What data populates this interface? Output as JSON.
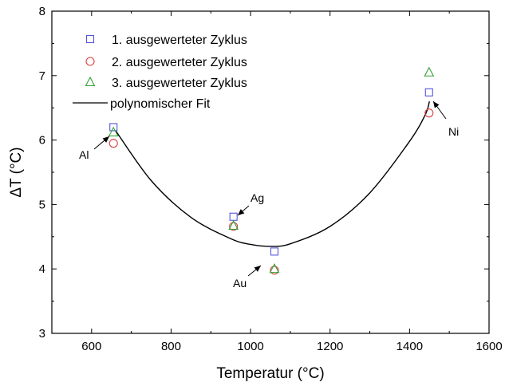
{
  "chart_data": {
    "type": "scatter",
    "xlabel": "Temperatur (°C)",
    "ylabel": "ΔT (°C)",
    "xlim": [
      500,
      1600
    ],
    "ylim": [
      3,
      8
    ],
    "x_ticks": [
      "600",
      "800",
      "1000",
      "1200",
      "1400",
      "1600"
    ],
    "y_ticks": [
      "3",
      "4",
      "5",
      "6",
      "7",
      "8"
    ],
    "grid": false,
    "legend_position": "top-left",
    "series": [
      {
        "name": "1. ausgewerteter Zyklus",
        "marker": "square",
        "color": "#5555dd",
        "points": [
          [
            655,
            6.2
          ],
          [
            957,
            4.81
          ],
          [
            1060,
            4.27
          ],
          [
            1449,
            6.74
          ]
        ]
      },
      {
        "name": "2. ausgewerteter Zyklus",
        "marker": "circle",
        "color": "#e04040",
        "points": [
          [
            655,
            5.95
          ],
          [
            957,
            4.66
          ],
          [
            1060,
            3.98
          ],
          [
            1449,
            6.42
          ]
        ]
      },
      {
        "name": "3. ausgewerteter Zyklus",
        "marker": "triangle",
        "color": "#33a033",
        "points": [
          [
            655,
            6.12
          ],
          [
            957,
            4.67
          ],
          [
            1060,
            4.0
          ],
          [
            1449,
            7.05
          ]
        ]
      },
      {
        "name": "polynomischer Fit",
        "marker": "line",
        "color": "#000000",
        "points": [
          [
            660,
            6.15
          ],
          [
            750,
            5.37
          ],
          [
            850,
            4.8
          ],
          [
            950,
            4.47
          ],
          [
            1000,
            4.38
          ],
          [
            1050,
            4.35
          ],
          [
            1100,
            4.39
          ],
          [
            1200,
            4.66
          ],
          [
            1300,
            5.18
          ],
          [
            1400,
            5.98
          ],
          [
            1440,
            6.4
          ],
          [
            1450,
            6.6
          ]
        ]
      }
    ],
    "annotations": [
      {
        "text": "Al",
        "target": [
          655,
          6.05
        ]
      },
      {
        "text": "Ag",
        "target": [
          957,
          4.74
        ]
      },
      {
        "text": "Au",
        "target": [
          1060,
          3.95
        ]
      },
      {
        "text": "Ni",
        "target": [
          1449,
          6.64
        ]
      }
    ]
  }
}
